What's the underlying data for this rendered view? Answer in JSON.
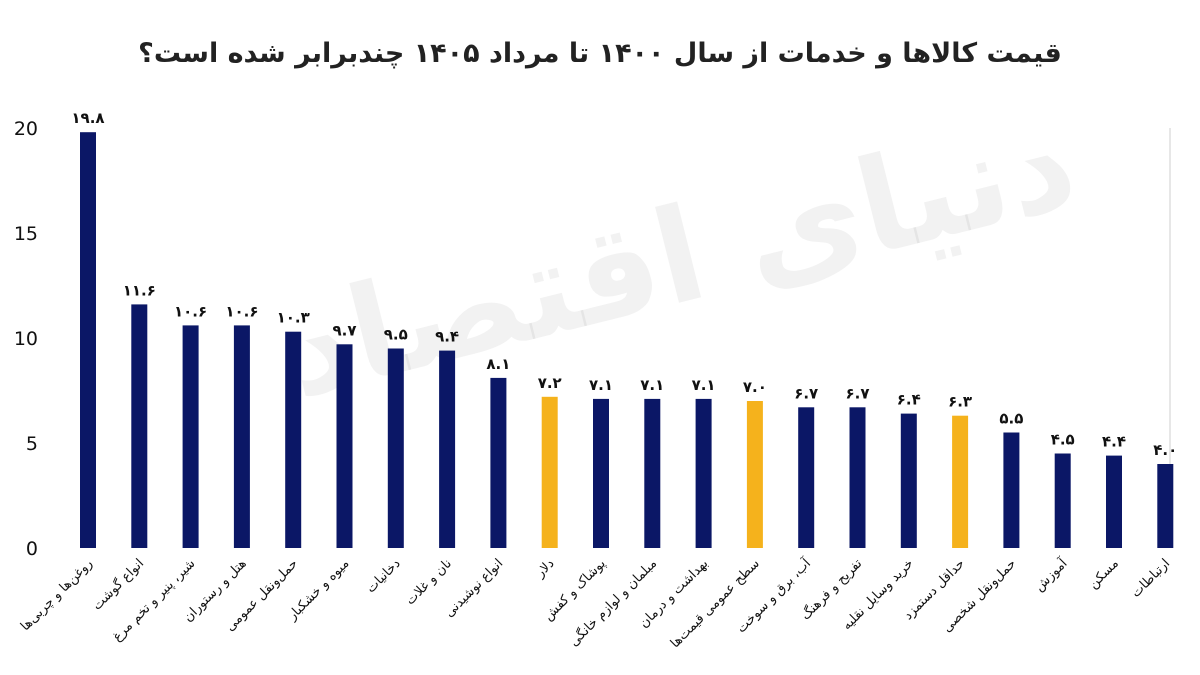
{
  "chart_data": {
    "type": "bar",
    "title": "قیمت کالاها و خدمات از سال ۱۴۰۰ تا مرداد ۱۴۰۵ چندبرابر شده است؟",
    "xlabel": "",
    "ylabel": "",
    "ylim": [
      0,
      20
    ],
    "yticks": [
      "0",
      "5",
      "10",
      "15",
      "20"
    ],
    "grid": false,
    "legend": "none",
    "colors": {
      "default": "#0b1766",
      "highlight": "#f5b21c",
      "axis": "#cfcfcf"
    },
    "watermark": "دنیای اقتصاد",
    "categories": [
      "روغن‌ها و چربی‌ها",
      "انواع گوشت",
      "شیر، پنیر و تخم مرغ",
      "هتل و رستوران",
      "حمل‌ونقل عمومی",
      "میوه و خشکبار",
      "دخانیات",
      "نان و غلات",
      "انواع نوشیدنی",
      "دلار",
      "پوشاک و کفش",
      "مبلمان و لوازم خانگی",
      "بهداشت و درمان",
      "سطح عمومی قیمت‌ها",
      "آب، برق و سوخت",
      "تفریح و فرهنگ",
      "خرید وسایل نقلیه",
      "حداقل دستمزد",
      "حمل‌ونقل شخصی",
      "آموزش",
      "مسکن",
      "ارتباطات"
    ],
    "values": [
      19.8,
      11.6,
      10.6,
      10.6,
      10.3,
      9.7,
      9.5,
      9.4,
      8.1,
      7.2,
      7.1,
      7.1,
      7.1,
      7.0,
      6.7,
      6.7,
      6.4,
      6.3,
      5.5,
      4.5,
      4.4,
      4.0
    ],
    "value_labels": [
      "۱۹.۸",
      "۱۱.۶",
      "۱۰.۶",
      "۱۰.۶",
      "۱۰.۳",
      "۹.۷",
      "۹.۵",
      "۹.۴",
      "۸.۱",
      "۷.۲",
      "۷.۱",
      "۷.۱",
      "۷.۱",
      "۷.۰",
      "۶.۷",
      "۶.۷",
      "۶.۴",
      "۶.۳",
      "۵.۵",
      "۴.۵",
      "۴.۴",
      "۴.۰"
    ],
    "highlighted": [
      "دلار",
      "سطح عمومی قیمت‌ها",
      "حداقل دستمزد"
    ]
  }
}
